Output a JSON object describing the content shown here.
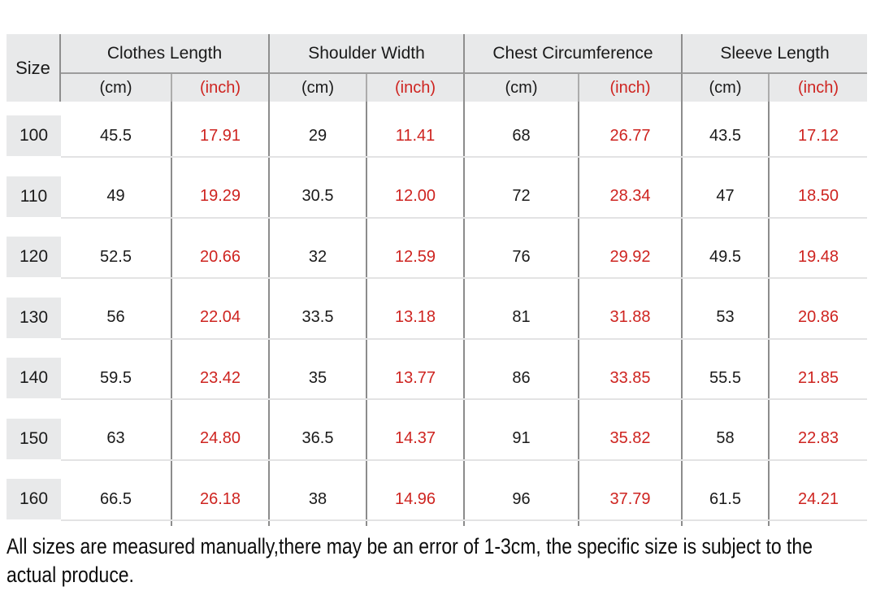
{
  "table": {
    "size_header": "Size",
    "unit_cm": "(cm)",
    "unit_inch": "(inch)",
    "groups": [
      {
        "label": "Clothes Length"
      },
      {
        "label": "Shoulder Width"
      },
      {
        "label": "Chest Circumference"
      },
      {
        "label": "Sleeve Length"
      }
    ],
    "rows": [
      {
        "size": "100",
        "cells": [
          "45.5",
          "17.91",
          "29",
          "11.41",
          "68",
          "26.77",
          "43.5",
          "17.12"
        ]
      },
      {
        "size": "110",
        "cells": [
          "49",
          "19.29",
          "30.5",
          "12.00",
          "72",
          "28.34",
          "47",
          "18.50"
        ]
      },
      {
        "size": "120",
        "cells": [
          "52.5",
          "20.66",
          "32",
          "12.59",
          "76",
          "29.92",
          "49.5",
          "19.48"
        ]
      },
      {
        "size": "130",
        "cells": [
          "56",
          "22.04",
          "33.5",
          "13.18",
          "81",
          "31.88",
          "53",
          "20.86"
        ]
      },
      {
        "size": "140",
        "cells": [
          "59.5",
          "23.42",
          "35",
          "13.77",
          "86",
          "33.85",
          "55.5",
          "21.85"
        ]
      },
      {
        "size": "150",
        "cells": [
          "63",
          "24.80",
          "36.5",
          "14.37",
          "91",
          "35.82",
          "58",
          "22.83"
        ]
      },
      {
        "size": "160",
        "cells": [
          "66.5",
          "26.18",
          "38",
          "14.96",
          "96",
          "37.79",
          "61.5",
          "24.21"
        ]
      }
    ]
  },
  "footer": {
    "note": "All sizes are measured manually,there may be an error of 1-3cm, the specific size is subject to the actual produce."
  },
  "colors": {
    "accent_red": "#ce2420",
    "header_background": "#e8e9ea",
    "grid_line_dark": "#8c8c8c",
    "grid_line_light": "#e3e3e4",
    "text": "#1a1a1a"
  }
}
